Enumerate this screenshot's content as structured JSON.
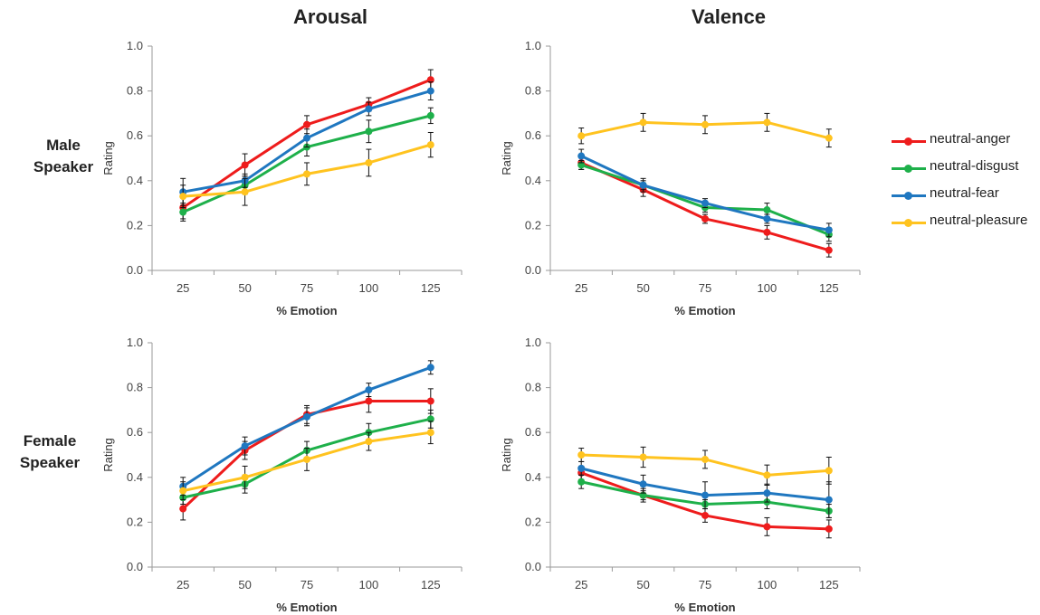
{
  "columns": {
    "left": "Arousal",
    "right": "Valence"
  },
  "rows": {
    "top": [
      "Male",
      "Speaker"
    ],
    "bottom": [
      "Female",
      "Speaker"
    ]
  },
  "legend": [
    {
      "label": "neutral-anger",
      "color": "#ee1c1c"
    },
    {
      "label": "neutral-disgust",
      "color": "#1eb04a"
    },
    {
      "label": "neutral-fear",
      "color": "#1f77c0"
    },
    {
      "label": "neutral-pleasure",
      "color": "#ffc31f"
    }
  ],
  "chart_data": [
    {
      "id": "male-arousal",
      "type": "line",
      "x": [
        25,
        50,
        75,
        100,
        125
      ],
      "xlabel": "% Emotion",
      "ylabel": "Rating",
      "ylim": [
        0,
        1
      ],
      "yticks": [
        0.0,
        0.2,
        0.4,
        0.6,
        0.8,
        1.0
      ],
      "series": [
        {
          "name": "neutral-anger",
          "values": [
            0.28,
            0.47,
            0.65,
            0.74,
            0.85
          ],
          "errors": [
            0.05,
            0.05,
            0.04,
            0.03,
            0.045
          ]
        },
        {
          "name": "neutral-disgust",
          "values": [
            0.26,
            0.38,
            0.55,
            0.62,
            0.69
          ],
          "errors": [
            0.04,
            0.04,
            0.04,
            0.05,
            0.035
          ]
        },
        {
          "name": "neutral-fear",
          "values": [
            0.35,
            0.4,
            0.59,
            0.72,
            0.8
          ],
          "errors": [
            0.06,
            0.03,
            0.04,
            0.03,
            0.04
          ]
        },
        {
          "name": "neutral-pleasure",
          "values": [
            0.33,
            0.35,
            0.43,
            0.48,
            0.56
          ],
          "errors": [
            0.05,
            0.06,
            0.05,
            0.06,
            0.055
          ]
        }
      ]
    },
    {
      "id": "male-valence",
      "type": "line",
      "x": [
        25,
        50,
        75,
        100,
        125
      ],
      "xlabel": "% Emotion",
      "ylabel": "Rating",
      "ylim": [
        0,
        1
      ],
      "yticks": [
        0.0,
        0.2,
        0.4,
        0.6,
        0.8,
        1.0
      ],
      "series": [
        {
          "name": "neutral-anger",
          "values": [
            0.48,
            0.36,
            0.23,
            0.17,
            0.09
          ],
          "errors": [
            0.03,
            0.03,
            0.02,
            0.03,
            0.03
          ]
        },
        {
          "name": "neutral-disgust",
          "values": [
            0.47,
            0.38,
            0.28,
            0.27,
            0.16
          ],
          "errors": [
            0.02,
            0.02,
            0.02,
            0.03,
            0.03
          ]
        },
        {
          "name": "neutral-fear",
          "values": [
            0.51,
            0.38,
            0.3,
            0.23,
            0.18
          ],
          "errors": [
            0.03,
            0.03,
            0.02,
            0.02,
            0.03
          ]
        },
        {
          "name": "neutral-pleasure",
          "values": [
            0.6,
            0.66,
            0.65,
            0.66,
            0.59
          ],
          "errors": [
            0.035,
            0.04,
            0.04,
            0.04,
            0.04
          ]
        }
      ]
    },
    {
      "id": "female-arousal",
      "type": "line",
      "x": [
        25,
        50,
        75,
        100,
        125
      ],
      "xlabel": "% Emotion",
      "ylabel": "Rating",
      "ylim": [
        0,
        1
      ],
      "yticks": [
        0.0,
        0.2,
        0.4,
        0.6,
        0.8,
        1.0
      ],
      "series": [
        {
          "name": "neutral-anger",
          "values": [
            0.26,
            0.52,
            0.68,
            0.74,
            0.74
          ],
          "errors": [
            0.05,
            0.04,
            0.04,
            0.05,
            0.055
          ]
        },
        {
          "name": "neutral-disgust",
          "values": [
            0.31,
            0.37,
            0.52,
            0.6,
            0.66
          ],
          "errors": [
            0.03,
            0.04,
            0.04,
            0.04,
            0.04
          ]
        },
        {
          "name": "neutral-fear",
          "values": [
            0.36,
            0.54,
            0.67,
            0.79,
            0.89
          ],
          "errors": [
            0.04,
            0.04,
            0.04,
            0.03,
            0.03
          ]
        },
        {
          "name": "neutral-pleasure",
          "values": [
            0.34,
            0.4,
            0.48,
            0.56,
            0.6
          ],
          "errors": [
            0.04,
            0.05,
            0.05,
            0.04,
            0.05
          ]
        }
      ]
    },
    {
      "id": "female-valence",
      "type": "line",
      "x": [
        25,
        50,
        75,
        100,
        125
      ],
      "xlabel": "% Emotion",
      "ylabel": "Rating",
      "ylim": [
        0,
        1
      ],
      "yticks": [
        0.0,
        0.2,
        0.4,
        0.6,
        0.8,
        1.0
      ],
      "series": [
        {
          "name": "neutral-anger",
          "values": [
            0.42,
            0.32,
            0.23,
            0.18,
            0.17
          ],
          "errors": [
            0.03,
            0.02,
            0.03,
            0.04,
            0.04
          ]
        },
        {
          "name": "neutral-disgust",
          "values": [
            0.38,
            0.32,
            0.28,
            0.29,
            0.25
          ],
          "errors": [
            0.03,
            0.03,
            0.02,
            0.03,
            0.03
          ]
        },
        {
          "name": "neutral-fear",
          "values": [
            0.44,
            0.37,
            0.32,
            0.33,
            0.3
          ],
          "errors": [
            0.03,
            0.04,
            0.06,
            0.04,
            0.08
          ]
        },
        {
          "name": "neutral-pleasure",
          "values": [
            0.5,
            0.49,
            0.48,
            0.41,
            0.43
          ],
          "errors": [
            0.03,
            0.045,
            0.04,
            0.045,
            0.06
          ]
        }
      ]
    }
  ]
}
